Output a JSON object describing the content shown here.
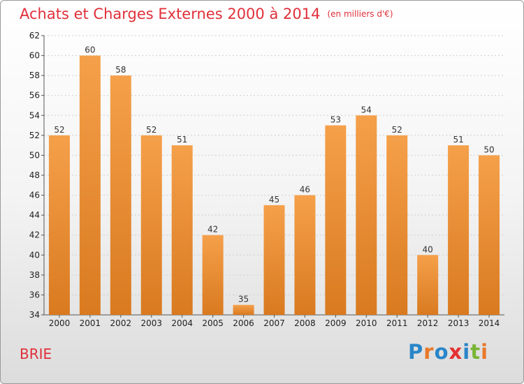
{
  "chart_data": {
    "type": "bar",
    "title": "Achats et Charges Externes 2000 à 2014",
    "subtitle": "(en milliers d'€)",
    "categories": [
      "2000",
      "2001",
      "2002",
      "2003",
      "2004",
      "2005",
      "2006",
      "2007",
      "2008",
      "2009",
      "2010",
      "2011",
      "2012",
      "2013",
      "2014"
    ],
    "values": [
      52,
      60,
      58,
      52,
      51,
      42,
      35,
      45,
      46,
      53,
      54,
      52,
      40,
      51,
      50
    ],
    "ylim": [
      34,
      62
    ],
    "yticks": [
      34,
      36,
      38,
      40,
      42,
      44,
      46,
      48,
      50,
      52,
      54,
      56,
      58,
      60,
      62
    ],
    "grid": true,
    "bar_color": "#f5a04a",
    "bar_color_dark": "#d97a20"
  },
  "footer": {
    "commune": "BRIE",
    "logo": [
      "P",
      "r",
      "o",
      "x",
      "i",
      "t",
      "i"
    ],
    "logo_colors": [
      "#2a86c8",
      "#e8792a",
      "#2a86c8",
      "#e53030",
      "#2a86c8",
      "#7ab536",
      "#e8792a"
    ]
  }
}
